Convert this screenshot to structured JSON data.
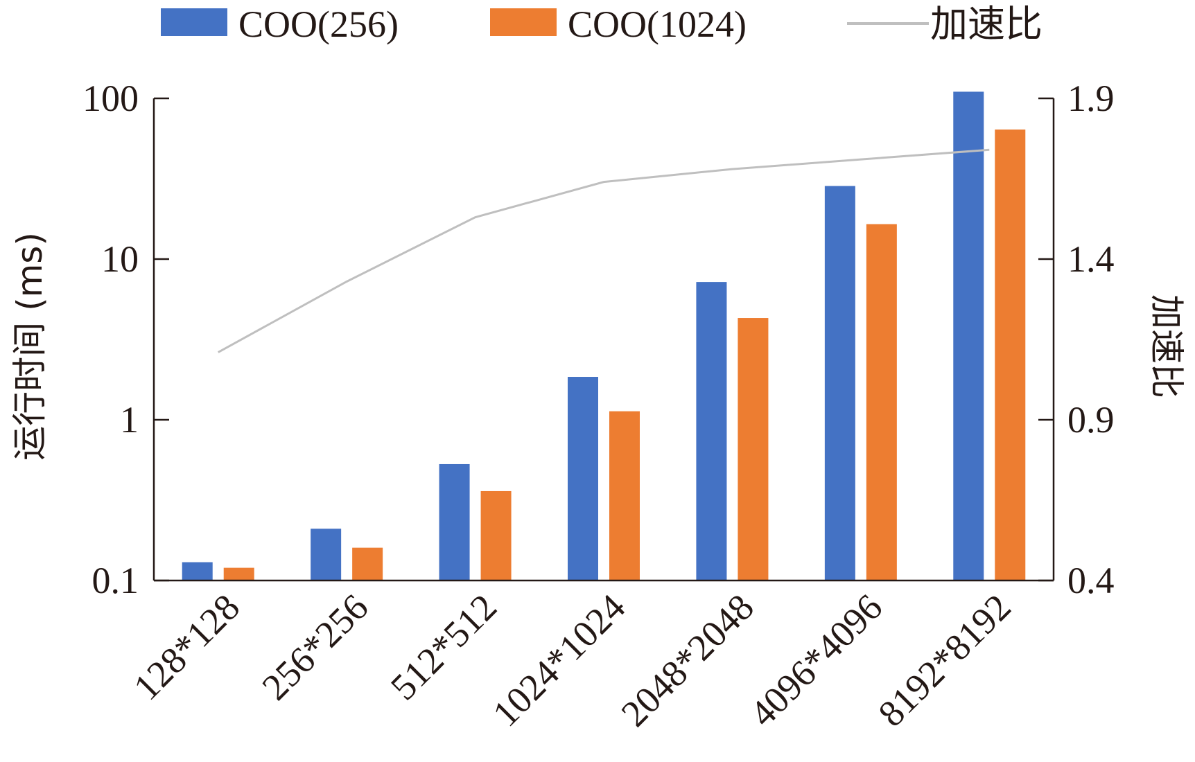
{
  "chart_data": {
    "type": "bar",
    "categories": [
      "128*128",
      "256*256",
      "512*512",
      "1024*1024",
      "2048*2048",
      "4096*4096",
      "8192*8192"
    ],
    "series": [
      {
        "name": "COO(256)",
        "axis": "left",
        "type": "bar",
        "color": "#4472C4",
        "values": [
          0.13,
          0.21,
          0.53,
          1.85,
          7.2,
          28.5,
          110
        ]
      },
      {
        "name": "COO(1024)",
        "axis": "left",
        "type": "bar",
        "color": "#ED7D31",
        "values": [
          0.12,
          0.16,
          0.36,
          1.13,
          4.3,
          16.5,
          64
        ]
      },
      {
        "name": "加速比",
        "axis": "right",
        "type": "line",
        "color": "#BFBFBF",
        "values": [
          1.11,
          1.33,
          1.53,
          1.64,
          1.68,
          1.71,
          1.74
        ]
      }
    ],
    "y_left": {
      "label": "运行时间 (ms)",
      "scale": "log",
      "range": [
        0.1,
        100
      ],
      "ticks": [
        0.1,
        1,
        10,
        100
      ],
      "tick_labels": [
        "0.1",
        "1",
        "10",
        "100"
      ]
    },
    "y_right": {
      "label": "加速比",
      "scale": "linear",
      "range": [
        0.4,
        1.9
      ],
      "ticks": [
        0.4,
        0.9,
        1.4,
        1.9
      ],
      "tick_labels": [
        "0.4",
        "0.9",
        "1.4",
        "1.9"
      ]
    },
    "legend": {
      "position": "top",
      "entries": [
        "COO(256)",
        "COO(1024)",
        "加速比"
      ]
    },
    "grid": false
  }
}
